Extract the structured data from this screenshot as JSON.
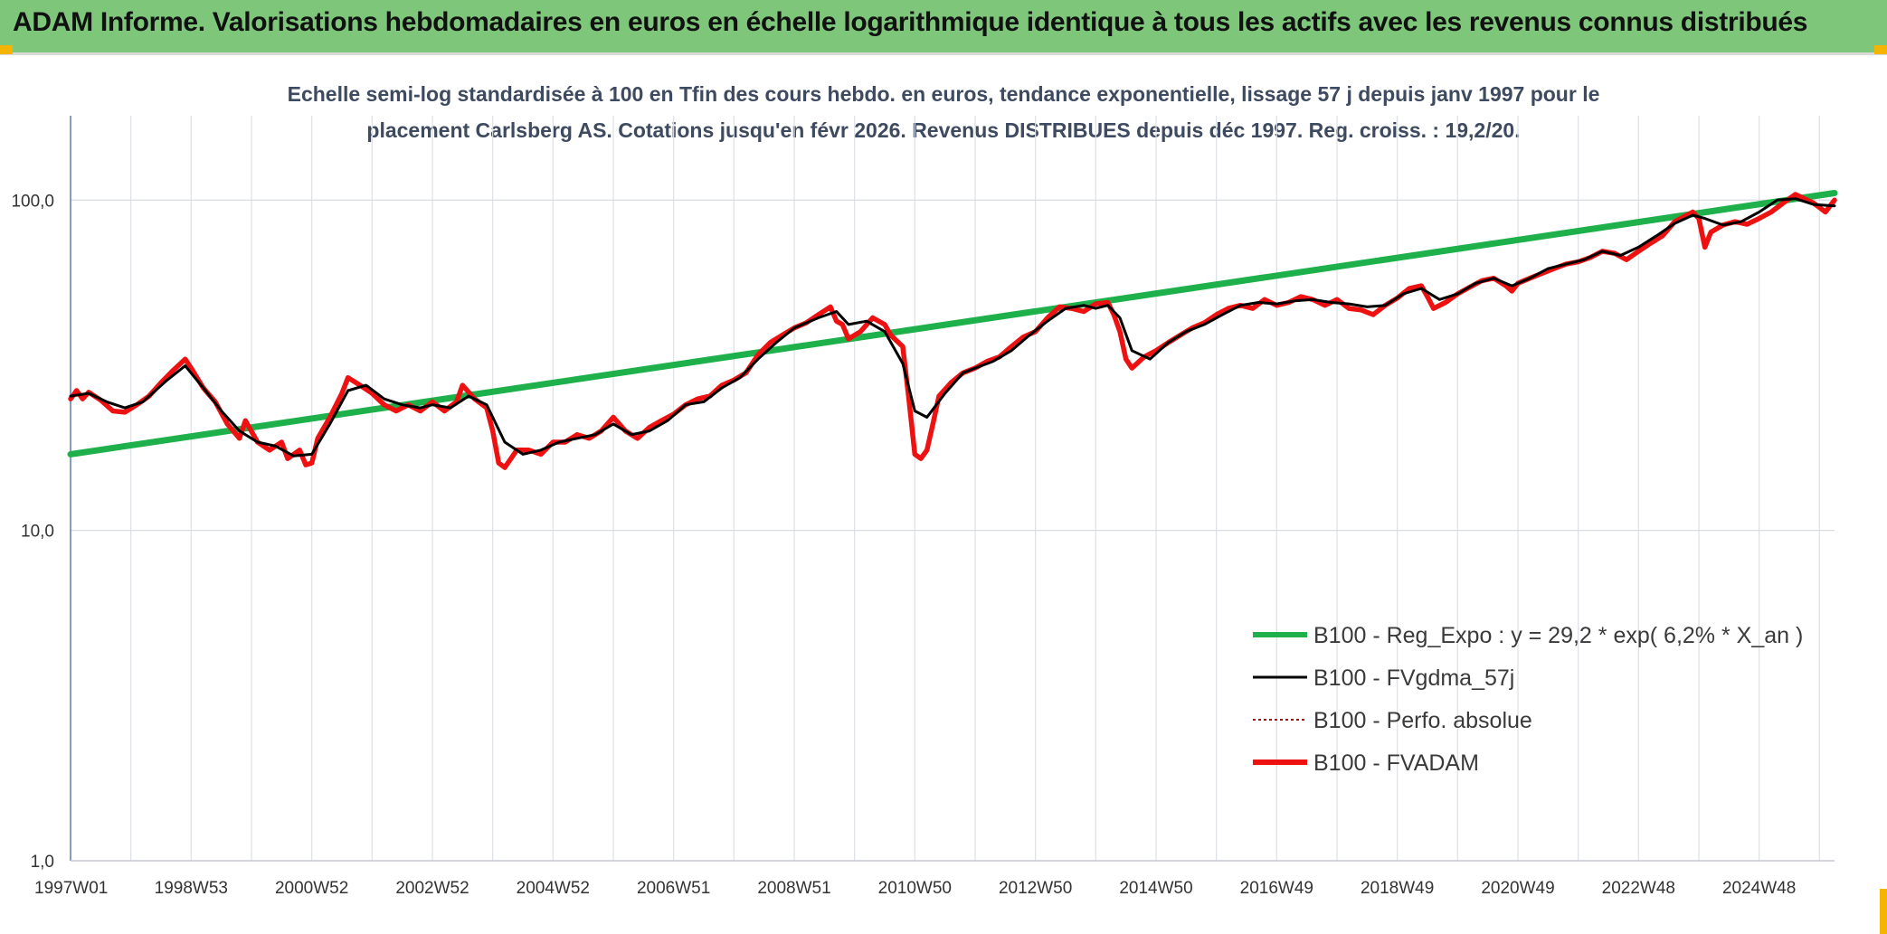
{
  "header": {
    "title": "ADAM Informe. Valorisations hebdomadaires en euros en échelle logarithmique identique à tous les actifs avec les revenus connus distribués"
  },
  "chart_data": {
    "type": "line",
    "title": "ADAM Informe. Valorisations hebdomadaires en euros en échelle logarithmique identique à tous les actifs avec les revenus connus distribués",
    "subtitle_lines": [
      "Echelle semi-log standardisée à 100 en Tfin des cours hebdo. en euros, tendance exponentielle, lissage 57 j depuis janv 1997 pour le",
      "placement Carlsberg AS. Cotations jusqu'en févr 2026. Revenus DISTRIBUES depuis déc 1997. Reg. croiss. : 19,2/20."
    ],
    "y_scale": "log",
    "ylim": [
      1,
      180
    ],
    "y_ticks": [
      {
        "value": 1,
        "label": "1,0"
      },
      {
        "value": 10,
        "label": "10,0"
      },
      {
        "value": 100,
        "label": "100,0"
      }
    ],
    "xlim": [
      1997.0,
      2026.25
    ],
    "x_ticks": [
      {
        "t": 1997.0,
        "label": "1997W01"
      },
      {
        "t": 1999.0,
        "label": "1998W53"
      },
      {
        "t": 2001.0,
        "label": "2000W52"
      },
      {
        "t": 2003.0,
        "label": "2002W52"
      },
      {
        "t": 2005.0,
        "label": "2004W52"
      },
      {
        "t": 2007.0,
        "label": "2006W51"
      },
      {
        "t": 2009.0,
        "label": "2008W51"
      },
      {
        "t": 2011.0,
        "label": "2010W50"
      },
      {
        "t": 2013.0,
        "label": "2012W50"
      },
      {
        "t": 2015.0,
        "label": "2014W50"
      },
      {
        "t": 2017.0,
        "label": "2016W49"
      },
      {
        "t": 2019.0,
        "label": "2018W49"
      },
      {
        "t": 2021.0,
        "label": "2020W49"
      },
      {
        "t": 2023.0,
        "label": "2022W48"
      },
      {
        "t": 2025.0,
        "label": "2024W48"
      }
    ],
    "grid": true,
    "legend_position": "bottom-right",
    "series": [
      {
        "name": "B100 - Reg_Expo : y = 29,2 * exp( 6,2% *  X_an )",
        "color": "#1db04b",
        "style": "thick",
        "points": [
          [
            1997.0,
            17.0
          ],
          [
            2026.25,
            105.0
          ]
        ]
      },
      {
        "name": "B100 - FVgdma_57j",
        "color": "#000000",
        "style": "thin",
        "points": [
          [
            1997.0,
            25.5
          ],
          [
            1997.3,
            26.0
          ],
          [
            1997.6,
            24.5
          ],
          [
            1997.9,
            23.5
          ],
          [
            1998.2,
            24.5
          ],
          [
            1998.6,
            28.5
          ],
          [
            1998.9,
            31.5
          ],
          [
            1999.2,
            27.0
          ],
          [
            1999.5,
            23.0
          ],
          [
            1999.8,
            20.0
          ],
          [
            2000.1,
            18.5
          ],
          [
            2000.4,
            18.0
          ],
          [
            2000.7,
            16.8
          ],
          [
            2001.0,
            17.0
          ],
          [
            2001.3,
            21.0
          ],
          [
            2001.6,
            26.5
          ],
          [
            2001.9,
            27.5
          ],
          [
            2002.2,
            25.0
          ],
          [
            2002.5,
            24.0
          ],
          [
            2002.8,
            23.5
          ],
          [
            2003.0,
            24.0
          ],
          [
            2003.3,
            23.5
          ],
          [
            2003.6,
            25.5
          ],
          [
            2003.9,
            24.0
          ],
          [
            2004.2,
            18.5
          ],
          [
            2004.5,
            17.0
          ],
          [
            2004.8,
            17.5
          ],
          [
            2005.1,
            18.5
          ],
          [
            2005.4,
            19.0
          ],
          [
            2005.7,
            19.5
          ],
          [
            2006.0,
            21.0
          ],
          [
            2006.3,
            19.5
          ],
          [
            2006.6,
            20.0
          ],
          [
            2006.9,
            21.5
          ],
          [
            2007.2,
            24.0
          ],
          [
            2007.5,
            24.5
          ],
          [
            2007.8,
            27.0
          ],
          [
            2008.1,
            29.0
          ],
          [
            2008.4,
            33.0
          ],
          [
            2008.7,
            37.0
          ],
          [
            2009.0,
            41.0
          ],
          [
            2009.4,
            44.0
          ],
          [
            2009.7,
            46.0
          ],
          [
            2009.9,
            42.0
          ],
          [
            2010.2,
            43.0
          ],
          [
            2010.5,
            40.0
          ],
          [
            2010.8,
            32.0
          ],
          [
            2011.0,
            23.0
          ],
          [
            2011.2,
            22.0
          ],
          [
            2011.5,
            26.0
          ],
          [
            2011.8,
            30.0
          ],
          [
            2012.0,
            31.0
          ],
          [
            2012.3,
            32.5
          ],
          [
            2012.6,
            35.0
          ],
          [
            2012.9,
            39.0
          ],
          [
            2013.2,
            43.0
          ],
          [
            2013.5,
            47.0
          ],
          [
            2013.8,
            48.0
          ],
          [
            2014.0,
            47.0
          ],
          [
            2014.2,
            48.0
          ],
          [
            2014.4,
            44.0
          ],
          [
            2014.6,
            35.0
          ],
          [
            2014.9,
            33.0
          ],
          [
            2015.2,
            37.0
          ],
          [
            2015.5,
            40.0
          ],
          [
            2015.8,
            42.0
          ],
          [
            2016.1,
            45.0
          ],
          [
            2016.4,
            48.0
          ],
          [
            2016.7,
            49.0
          ],
          [
            2017.0,
            48.5
          ],
          [
            2017.3,
            49.5
          ],
          [
            2017.6,
            50.0
          ],
          [
            2017.9,
            49.0
          ],
          [
            2018.2,
            48.5
          ],
          [
            2018.5,
            47.5
          ],
          [
            2018.8,
            48.0
          ],
          [
            2019.1,
            52.0
          ],
          [
            2019.4,
            54.0
          ],
          [
            2019.7,
            50.0
          ],
          [
            2020.0,
            52.0
          ],
          [
            2020.3,
            56.0
          ],
          [
            2020.6,
            58.0
          ],
          [
            2020.9,
            55.0
          ],
          [
            2021.2,
            58.0
          ],
          [
            2021.5,
            62.0
          ],
          [
            2021.8,
            64.0
          ],
          [
            2022.1,
            66.0
          ],
          [
            2022.4,
            70.0
          ],
          [
            2022.7,
            68.0
          ],
          [
            2023.0,
            72.0
          ],
          [
            2023.3,
            78.0
          ],
          [
            2023.6,
            85.0
          ],
          [
            2023.9,
            90.0
          ],
          [
            2024.1,
            88.0
          ],
          [
            2024.4,
            84.0
          ],
          [
            2024.7,
            86.0
          ],
          [
            2025.0,
            92.0
          ],
          [
            2025.3,
            100.0
          ],
          [
            2025.6,
            101.0
          ],
          [
            2025.9,
            97.0
          ],
          [
            2026.25,
            96.0
          ]
        ]
      },
      {
        "name": "B100 - Perfo. absolue",
        "color": "#cc0000",
        "style": "dotted",
        "points": []
      },
      {
        "name": "B100 - FVADAM",
        "color": "#ee1111",
        "style": "thick",
        "points": [
          [
            1997.0,
            25.0
          ],
          [
            1997.1,
            26.5
          ],
          [
            1997.2,
            25.0
          ],
          [
            1997.3,
            26.2
          ],
          [
            1997.5,
            24.8
          ],
          [
            1997.7,
            23.0
          ],
          [
            1997.9,
            22.8
          ],
          [
            1998.1,
            24.0
          ],
          [
            1998.3,
            25.5
          ],
          [
            1998.5,
            28.0
          ],
          [
            1998.7,
            30.5
          ],
          [
            1998.9,
            33.0
          ],
          [
            1999.0,
            31.0
          ],
          [
            1999.2,
            27.0
          ],
          [
            1999.4,
            24.5
          ],
          [
            1999.6,
            21.0
          ],
          [
            1999.8,
            19.0
          ],
          [
            1999.9,
            21.5
          ],
          [
            2000.1,
            18.5
          ],
          [
            2000.3,
            17.5
          ],
          [
            2000.5,
            18.5
          ],
          [
            2000.6,
            16.5
          ],
          [
            2000.8,
            17.5
          ],
          [
            2000.9,
            15.8
          ],
          [
            2001.0,
            16.0
          ],
          [
            2001.1,
            19.0
          ],
          [
            2001.3,
            22.0
          ],
          [
            2001.5,
            26.0
          ],
          [
            2001.6,
            29.0
          ],
          [
            2001.8,
            27.5
          ],
          [
            2002.0,
            26.0
          ],
          [
            2002.2,
            24.0
          ],
          [
            2002.4,
            23.0
          ],
          [
            2002.6,
            24.0
          ],
          [
            2002.8,
            23.0
          ],
          [
            2003.0,
            24.5
          ],
          [
            2003.2,
            23.0
          ],
          [
            2003.4,
            24.5
          ],
          [
            2003.5,
            27.5
          ],
          [
            2003.7,
            25.0
          ],
          [
            2003.9,
            23.5
          ],
          [
            2004.0,
            20.0
          ],
          [
            2004.1,
            16.0
          ],
          [
            2004.2,
            15.5
          ],
          [
            2004.4,
            17.5
          ],
          [
            2004.6,
            17.5
          ],
          [
            2004.8,
            17.0
          ],
          [
            2005.0,
            18.5
          ],
          [
            2005.2,
            18.5
          ],
          [
            2005.4,
            19.5
          ],
          [
            2005.6,
            19.0
          ],
          [
            2005.8,
            20.0
          ],
          [
            2006.0,
            22.0
          ],
          [
            2006.2,
            20.0
          ],
          [
            2006.4,
            19.0
          ],
          [
            2006.6,
            20.5
          ],
          [
            2006.8,
            21.5
          ],
          [
            2007.0,
            22.5
          ],
          [
            2007.2,
            24.0
          ],
          [
            2007.4,
            25.0
          ],
          [
            2007.6,
            25.5
          ],
          [
            2007.8,
            27.5
          ],
          [
            2008.0,
            28.5
          ],
          [
            2008.2,
            30.0
          ],
          [
            2008.4,
            34.0
          ],
          [
            2008.6,
            37.0
          ],
          [
            2008.8,
            39.0
          ],
          [
            2009.0,
            41.0
          ],
          [
            2009.2,
            42.5
          ],
          [
            2009.4,
            45.0
          ],
          [
            2009.6,
            47.5
          ],
          [
            2009.7,
            43.0
          ],
          [
            2009.8,
            42.0
          ],
          [
            2009.9,
            38.0
          ],
          [
            2010.1,
            40.0
          ],
          [
            2010.3,
            44.0
          ],
          [
            2010.5,
            42.0
          ],
          [
            2010.6,
            39.0
          ],
          [
            2010.8,
            36.0
          ],
          [
            2010.9,
            25.0
          ],
          [
            2011.0,
            17.0
          ],
          [
            2011.1,
            16.5
          ],
          [
            2011.2,
            17.5
          ],
          [
            2011.3,
            21.0
          ],
          [
            2011.4,
            25.5
          ],
          [
            2011.6,
            28.0
          ],
          [
            2011.8,
            30.0
          ],
          [
            2012.0,
            31.0
          ],
          [
            2012.2,
            32.5
          ],
          [
            2012.4,
            33.5
          ],
          [
            2012.6,
            36.0
          ],
          [
            2012.8,
            38.5
          ],
          [
            2013.0,
            40.0
          ],
          [
            2013.2,
            44.0
          ],
          [
            2013.4,
            47.5
          ],
          [
            2013.6,
            47.0
          ],
          [
            2013.8,
            46.0
          ],
          [
            2014.0,
            48.5
          ],
          [
            2014.2,
            49.0
          ],
          [
            2014.3,
            45.0
          ],
          [
            2014.4,
            40.0
          ],
          [
            2014.5,
            33.0
          ],
          [
            2014.6,
            31.0
          ],
          [
            2014.8,
            33.5
          ],
          [
            2015.0,
            35.0
          ],
          [
            2015.2,
            37.0
          ],
          [
            2015.4,
            39.0
          ],
          [
            2015.6,
            41.0
          ],
          [
            2015.8,
            42.5
          ],
          [
            2016.0,
            45.0
          ],
          [
            2016.2,
            47.0
          ],
          [
            2016.4,
            48.0
          ],
          [
            2016.6,
            47.0
          ],
          [
            2016.8,
            50.0
          ],
          [
            2017.0,
            48.0
          ],
          [
            2017.2,
            49.0
          ],
          [
            2017.4,
            51.0
          ],
          [
            2017.6,
            50.0
          ],
          [
            2017.8,
            48.0
          ],
          [
            2018.0,
            50.0
          ],
          [
            2018.2,
            47.0
          ],
          [
            2018.4,
            46.5
          ],
          [
            2018.6,
            45.0
          ],
          [
            2018.8,
            48.0
          ],
          [
            2019.0,
            50.5
          ],
          [
            2019.2,
            54.0
          ],
          [
            2019.4,
            55.0
          ],
          [
            2019.5,
            51.0
          ],
          [
            2019.6,
            47.0
          ],
          [
            2019.8,
            49.0
          ],
          [
            2020.0,
            52.0
          ],
          [
            2020.2,
            54.5
          ],
          [
            2020.4,
            57.0
          ],
          [
            2020.6,
            58.0
          ],
          [
            2020.8,
            55.0
          ],
          [
            2020.9,
            53.0
          ],
          [
            2021.0,
            56.0
          ],
          [
            2021.2,
            58.0
          ],
          [
            2021.4,
            60.0
          ],
          [
            2021.6,
            62.0
          ],
          [
            2021.8,
            64.0
          ],
          [
            2022.0,
            65.0
          ],
          [
            2022.2,
            67.0
          ],
          [
            2022.4,
            70.0
          ],
          [
            2022.6,
            69.0
          ],
          [
            2022.8,
            66.0
          ],
          [
            2023.0,
            70.0
          ],
          [
            2023.2,
            74.0
          ],
          [
            2023.4,
            78.0
          ],
          [
            2023.6,
            86.0
          ],
          [
            2023.8,
            90.0
          ],
          [
            2023.9,
            92.0
          ],
          [
            2024.0,
            88.0
          ],
          [
            2024.1,
            72.0
          ],
          [
            2024.2,
            80.0
          ],
          [
            2024.4,
            84.0
          ],
          [
            2024.6,
            86.0
          ],
          [
            2024.8,
            84.5
          ],
          [
            2025.0,
            88.0
          ],
          [
            2025.2,
            92.0
          ],
          [
            2025.4,
            98.0
          ],
          [
            2025.6,
            104.0
          ],
          [
            2025.8,
            100.0
          ],
          [
            2025.9,
            98.0
          ],
          [
            2026.0,
            95.0
          ],
          [
            2026.1,
            92.0
          ],
          [
            2026.25,
            100.0
          ]
        ]
      }
    ]
  }
}
